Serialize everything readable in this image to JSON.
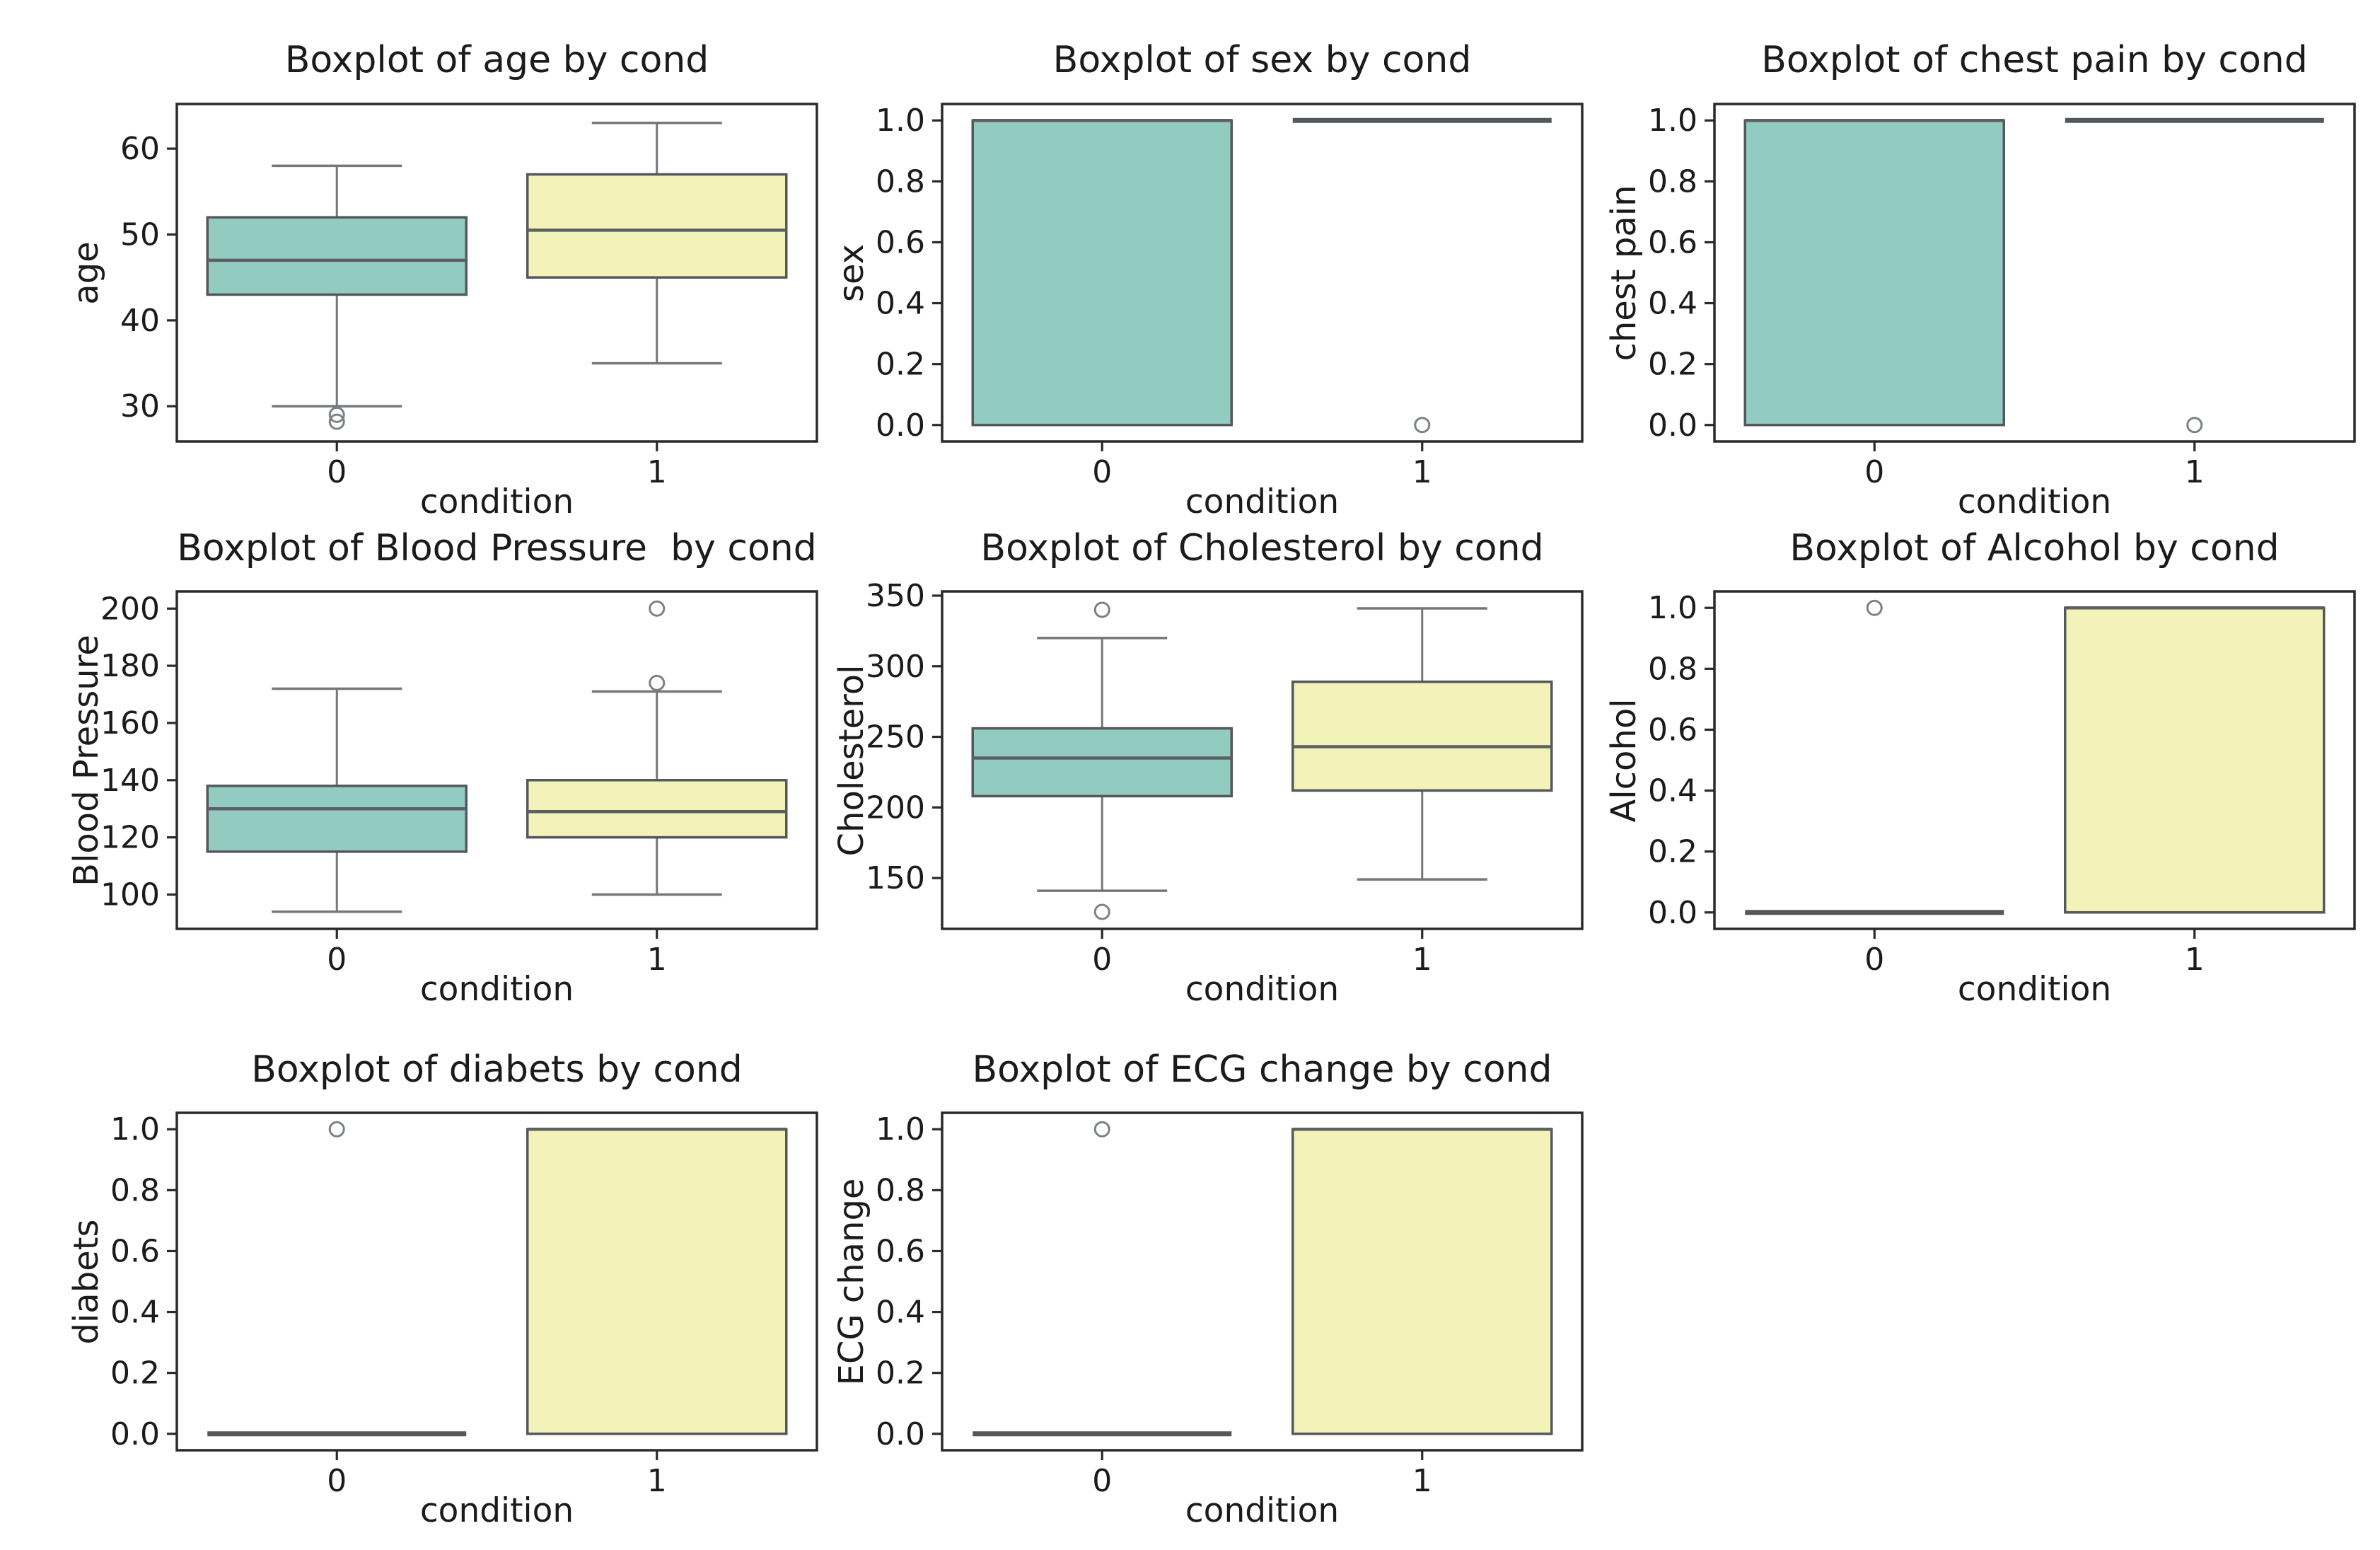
{
  "figure": {
    "background": "#ffffff",
    "xlabel": "condition",
    "categories": [
      "0",
      "1"
    ]
  },
  "colors": {
    "teal": "#92cbc1",
    "yellow": "#f2f2b9",
    "box_edge": "#54585a",
    "whisker": "#74787a",
    "median": "#5c6062",
    "outlier": "#7d8183",
    "spine": "#2a2a2a",
    "text": "#1b1b1b"
  },
  "chart_data": [
    {
      "type": "box",
      "title": "Boxplot of age by cond",
      "ylabel": "age",
      "xlabel": "condition",
      "categories": [
        "0",
        "1"
      ],
      "ylim": [
        25.9,
        65.2
      ],
      "yticks": [
        30,
        40,
        50,
        60
      ],
      "ytick_labels": [
        "30",
        "40",
        "50",
        "60"
      ],
      "series": [
        {
          "condition": "0",
          "color": "teal",
          "whisker_low": 30,
          "q1": 43,
          "median": 47,
          "q3": 52,
          "whisker_high": 58,
          "outliers": [
            29,
            28.2
          ]
        },
        {
          "condition": "1",
          "color": "yellow",
          "whisker_low": 35,
          "q1": 45,
          "median": 50.5,
          "q3": 57,
          "whisker_high": 63,
          "outliers": []
        }
      ]
    },
    {
      "type": "box",
      "title": "Boxplot of sex by cond",
      "ylabel": "sex",
      "xlabel": "condition",
      "categories": [
        "0",
        "1"
      ],
      "ylim": [
        -0.054,
        1.054
      ],
      "yticks": [
        0.0,
        0.2,
        0.4,
        0.6,
        0.8,
        1.0
      ],
      "ytick_labels": [
        "0.0",
        "0.2",
        "0.4",
        "0.6",
        "0.8",
        "1.0"
      ],
      "series": [
        {
          "condition": "0",
          "color": "teal",
          "whisker_low": 0,
          "q1": 0,
          "median": 1,
          "q3": 1,
          "whisker_high": 1,
          "outliers": []
        },
        {
          "condition": "1",
          "color": "yellow",
          "whisker_low": 1,
          "q1": 1,
          "median": 1,
          "q3": 1,
          "whisker_high": 1,
          "outliers": [
            0
          ]
        }
      ]
    },
    {
      "type": "box",
      "title": "Boxplot of chest pain by cond",
      "ylabel": "chest pain",
      "xlabel": "condition",
      "categories": [
        "0",
        "1"
      ],
      "ylim": [
        -0.054,
        1.054
      ],
      "yticks": [
        0.0,
        0.2,
        0.4,
        0.6,
        0.8,
        1.0
      ],
      "ytick_labels": [
        "0.0",
        "0.2",
        "0.4",
        "0.6",
        "0.8",
        "1.0"
      ],
      "series": [
        {
          "condition": "0",
          "color": "teal",
          "whisker_low": 0,
          "q1": 0,
          "median": 1,
          "q3": 1,
          "whisker_high": 1,
          "outliers": []
        },
        {
          "condition": "1",
          "color": "yellow",
          "whisker_low": 1,
          "q1": 1,
          "median": 1,
          "q3": 1,
          "whisker_high": 1,
          "outliers": [
            0
          ]
        }
      ]
    },
    {
      "type": "box",
      "title": "Boxplot of Blood Pressure  by cond",
      "ylabel": "Blood Pressure",
      "xlabel": "condition",
      "categories": [
        "0",
        "1"
      ],
      "ylim": [
        88,
        206
      ],
      "yticks": [
        100,
        120,
        140,
        160,
        180,
        200
      ],
      "ytick_labels": [
        "100",
        "120",
        "140",
        "160",
        "180",
        "200"
      ],
      "series": [
        {
          "condition": "0",
          "color": "teal",
          "whisker_low": 94,
          "q1": 115,
          "median": 130,
          "q3": 138,
          "whisker_high": 172,
          "outliers": []
        },
        {
          "condition": "1",
          "color": "yellow",
          "whisker_low": 100,
          "q1": 120,
          "median": 129,
          "q3": 140,
          "whisker_high": 171,
          "outliers": [
            174,
            200
          ]
        }
      ]
    },
    {
      "type": "box",
      "title": "Boxplot of Cholesterol by cond",
      "ylabel": "Cholesterol",
      "xlabel": "condition",
      "categories": [
        "0",
        "1"
      ],
      "ylim": [
        114,
        353
      ],
      "yticks": [
        150,
        200,
        250,
        300,
        350
      ],
      "ytick_labels": [
        "150",
        "200",
        "250",
        "300",
        "350"
      ],
      "series": [
        {
          "condition": "0",
          "color": "teal",
          "whisker_low": 141,
          "q1": 208,
          "median": 235,
          "q3": 256,
          "whisker_high": 320,
          "outliers": [
            340,
            126
          ]
        },
        {
          "condition": "1",
          "color": "yellow",
          "whisker_low": 149,
          "q1": 212,
          "median": 243,
          "q3": 289,
          "whisker_high": 341,
          "outliers": []
        }
      ]
    },
    {
      "type": "box",
      "title": "Boxplot of Alcohol by cond",
      "ylabel": "Alcohol",
      "xlabel": "condition",
      "categories": [
        "0",
        "1"
      ],
      "ylim": [
        -0.054,
        1.054
      ],
      "yticks": [
        0.0,
        0.2,
        0.4,
        0.6,
        0.8,
        1.0
      ],
      "ytick_labels": [
        "0.0",
        "0.2",
        "0.4",
        "0.6",
        "0.8",
        "1.0"
      ],
      "series": [
        {
          "condition": "0",
          "color": "teal",
          "whisker_low": 0,
          "q1": 0,
          "median": 0,
          "q3": 0,
          "whisker_high": 0,
          "outliers": [
            1
          ]
        },
        {
          "condition": "1",
          "color": "yellow",
          "whisker_low": 0,
          "q1": 0,
          "median": 1,
          "q3": 1,
          "whisker_high": 1,
          "outliers": []
        }
      ]
    },
    {
      "type": "box",
      "title": "Boxplot of diabets by cond",
      "ylabel": "diabets",
      "xlabel": "condition",
      "categories": [
        "0",
        "1"
      ],
      "ylim": [
        -0.054,
        1.054
      ],
      "yticks": [
        0.0,
        0.2,
        0.4,
        0.6,
        0.8,
        1.0
      ],
      "ytick_labels": [
        "0.0",
        "0.2",
        "0.4",
        "0.6",
        "0.8",
        "1.0"
      ],
      "series": [
        {
          "condition": "0",
          "color": "teal",
          "whisker_low": 0,
          "q1": 0,
          "median": 0,
          "q3": 0,
          "whisker_high": 0,
          "outliers": [
            1
          ]
        },
        {
          "condition": "1",
          "color": "yellow",
          "whisker_low": 0,
          "q1": 0,
          "median": 1,
          "q3": 1,
          "whisker_high": 1,
          "outliers": []
        }
      ]
    },
    {
      "type": "box",
      "title": "Boxplot of ECG change by cond",
      "ylabel": "ECG change",
      "xlabel": "condition",
      "categories": [
        "0",
        "1"
      ],
      "ylim": [
        -0.054,
        1.054
      ],
      "yticks": [
        0.0,
        0.2,
        0.4,
        0.6,
        0.8,
        1.0
      ],
      "ytick_labels": [
        "0.0",
        "0.2",
        "0.4",
        "0.6",
        "0.8",
        "1.0"
      ],
      "series": [
        {
          "condition": "0",
          "color": "teal",
          "whisker_low": 0,
          "q1": 0,
          "median": 0,
          "q3": 0,
          "whisker_high": 0,
          "outliers": [
            1
          ]
        },
        {
          "condition": "1",
          "color": "yellow",
          "whisker_low": 0,
          "q1": 0,
          "median": 1,
          "q3": 1,
          "whisker_high": 1,
          "outliers": []
        }
      ]
    }
  ]
}
